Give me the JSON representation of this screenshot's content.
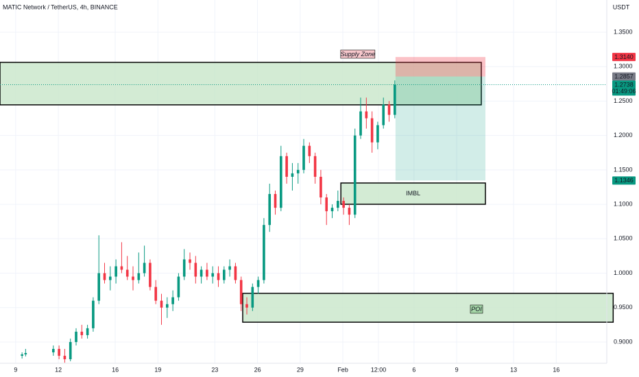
{
  "chart_data": {
    "type": "candlestick",
    "title": "MATIC Network / TetherUS, 4h, BINANCE",
    "y_unit": "USDT",
    "up_color": "#089981",
    "down_color": "#f23645",
    "x": [
      9.45,
      9.7,
      11.65,
      12.05,
      12.45,
      12.85,
      13.25,
      13.65,
      14.05,
      14.45,
      14.85,
      15.25,
      15.65,
      16.05,
      16.45,
      16.85,
      17.25,
      17.65,
      18.05,
      18.45,
      18.85,
      19.25,
      19.65,
      20.05,
      20.45,
      20.85,
      21.25,
      21.65,
      22.05,
      22.45,
      22.85,
      23.25,
      23.65,
      24.05,
      24.45,
      24.85,
      25.25,
      25.65,
      26.05,
      26.45,
      26.85,
      27.25,
      27.65,
      28.05,
      28.45,
      28.85,
      29.25,
      29.65,
      30.05,
      30.45,
      30.85,
      31.25,
      31.65,
      32.05,
      32.45,
      32.85,
      33.25,
      33.65,
      34.05,
      34.45,
      34.85,
      35.25,
      35.65
    ],
    "open": [
      0.88,
      0.882,
      0.885,
      0.89,
      0.88,
      0.875,
      0.9,
      0.915,
      0.91,
      0.92,
      0.96,
      1.0,
      0.99,
      0.995,
      1.01,
      1.005,
      0.995,
      0.99,
      1.0,
      1.015,
      0.98,
      0.96,
      0.95,
      0.955,
      0.965,
      0.995,
      1.02,
      1.015,
      0.995,
      1.005,
      0.995,
      1.0,
      0.99,
      1.005,
      1.01,
      0.99,
      0.955,
      0.95,
      0.98,
      0.99,
      1.07,
      1.115,
      1.095,
      1.17,
      1.14,
      1.145,
      1.15,
      1.185,
      1.17,
      1.14,
      1.11,
      1.09,
      1.095,
      1.105,
      1.095,
      1.085,
      1.2,
      1.235,
      1.225,
      1.19,
      1.215,
      1.245,
      1.23
    ],
    "high": [
      0.885,
      0.89,
      0.895,
      0.895,
      0.89,
      0.905,
      0.92,
      0.925,
      0.925,
      0.965,
      1.055,
      1.015,
      1.01,
      1.02,
      1.045,
      1.025,
      1.01,
      1.03,
      1.04,
      1.02,
      0.99,
      0.97,
      0.965,
      0.975,
      1.0,
      1.035,
      1.03,
      1.025,
      1.01,
      1.015,
      1.01,
      1.01,
      1.01,
      1.02,
      1.015,
      0.995,
      0.965,
      0.985,
      0.995,
      1.08,
      1.13,
      1.12,
      1.185,
      1.175,
      1.16,
      1.16,
      1.195,
      1.19,
      1.175,
      1.15,
      1.115,
      1.1,
      1.12,
      1.11,
      1.1,
      1.21,
      1.255,
      1.255,
      1.235,
      1.22,
      1.255,
      1.25,
      1.28
    ],
    "low": [
      0.876,
      0.879,
      0.88,
      0.875,
      0.87,
      0.872,
      0.895,
      0.905,
      0.905,
      0.915,
      0.955,
      0.985,
      0.975,
      0.985,
      1.0,
      0.99,
      0.975,
      0.985,
      0.995,
      0.975,
      0.955,
      0.925,
      0.935,
      0.945,
      0.96,
      0.99,
      1.005,
      0.985,
      0.985,
      0.99,
      0.985,
      0.98,
      0.985,
      0.995,
      0.985,
      0.945,
      0.94,
      0.945,
      0.97,
      0.985,
      1.06,
      1.085,
      1.09,
      1.13,
      1.12,
      1.13,
      1.145,
      1.16,
      1.13,
      1.1,
      1.07,
      1.08,
      1.09,
      1.085,
      1.07,
      1.08,
      1.195,
      1.21,
      1.175,
      1.18,
      1.21,
      1.22,
      1.225
    ],
    "close": [
      0.882,
      0.884,
      0.89,
      0.88,
      0.875,
      0.9,
      0.915,
      0.91,
      0.92,
      0.96,
      1.0,
      0.99,
      0.995,
      1.01,
      1.005,
      0.995,
      0.99,
      1.0,
      1.015,
      0.98,
      0.96,
      0.95,
      0.955,
      0.965,
      0.995,
      1.02,
      1.015,
      0.995,
      1.005,
      0.995,
      1.0,
      0.99,
      1.005,
      1.01,
      0.99,
      0.955,
      0.95,
      0.98,
      0.99,
      1.07,
      1.115,
      1.095,
      1.17,
      1.14,
      1.145,
      1.15,
      1.185,
      1.17,
      1.14,
      1.11,
      1.09,
      1.095,
      1.105,
      1.095,
      1.085,
      1.2,
      1.235,
      1.225,
      1.19,
      1.215,
      1.245,
      1.23,
      1.2738
    ],
    "xlim": [
      7.9,
      50.55
    ],
    "xticks": [
      9,
      12,
      16,
      19,
      23,
      26,
      29,
      {
        "value": 32,
        "label": "Feb"
      },
      {
        "value": 34.5,
        "label": "12:00"
      },
      {
        "value": 37,
        "label": "6"
      },
      {
        "value": 40,
        "label": "9"
      },
      {
        "value": 44,
        "label": "13"
      },
      {
        "value": 47,
        "label": "16"
      }
    ],
    "ylim": [
      0.8691,
      1.3968
    ],
    "yticks": [
      {
        "value": 0.9,
        "label": "0.9000"
      },
      {
        "value": 0.95,
        "label": "0.9500"
      },
      {
        "value": 1,
        "label": "1.0000"
      },
      {
        "value": 1.05,
        "label": "1.0500"
      },
      {
        "value": 1.1,
        "label": "1.1000"
      },
      {
        "value": 1.15,
        "label": "1.1500"
      },
      {
        "value": 1.2,
        "label": "1.2000"
      },
      {
        "value": 1.25,
        "label": "1.2500"
      },
      {
        "value": 1.3,
        "label": "1.3000"
      },
      {
        "value": 1.35,
        "label": "1.3500"
      }
    ],
    "grid": true,
    "zones": [
      {
        "label": "Supply Zone",
        "x": [
          7.9,
          41.73
        ],
        "y": [
          1.2445,
          1.3062
        ],
        "color": "#c8e6c9"
      },
      {
        "label": "IMBL",
        "x": [
          31.86,
          42.02
        ],
        "y": [
          1.1001,
          1.131
        ],
        "color": "#c8e6c9"
      },
      {
        "label": "POI",
        "x": [
          24.96,
          51
        ],
        "y": [
          0.9288,
          0.9707
        ],
        "color": "#c8e6c9"
      }
    ],
    "position": {
      "x": [
        35.7,
        42.02
      ],
      "stop": {
        "value": 1.314,
        "label": "1.3140"
      },
      "entry": 1.2857,
      "target": 1.1346,
      "countdown": "01:49:06"
    }
  }
}
